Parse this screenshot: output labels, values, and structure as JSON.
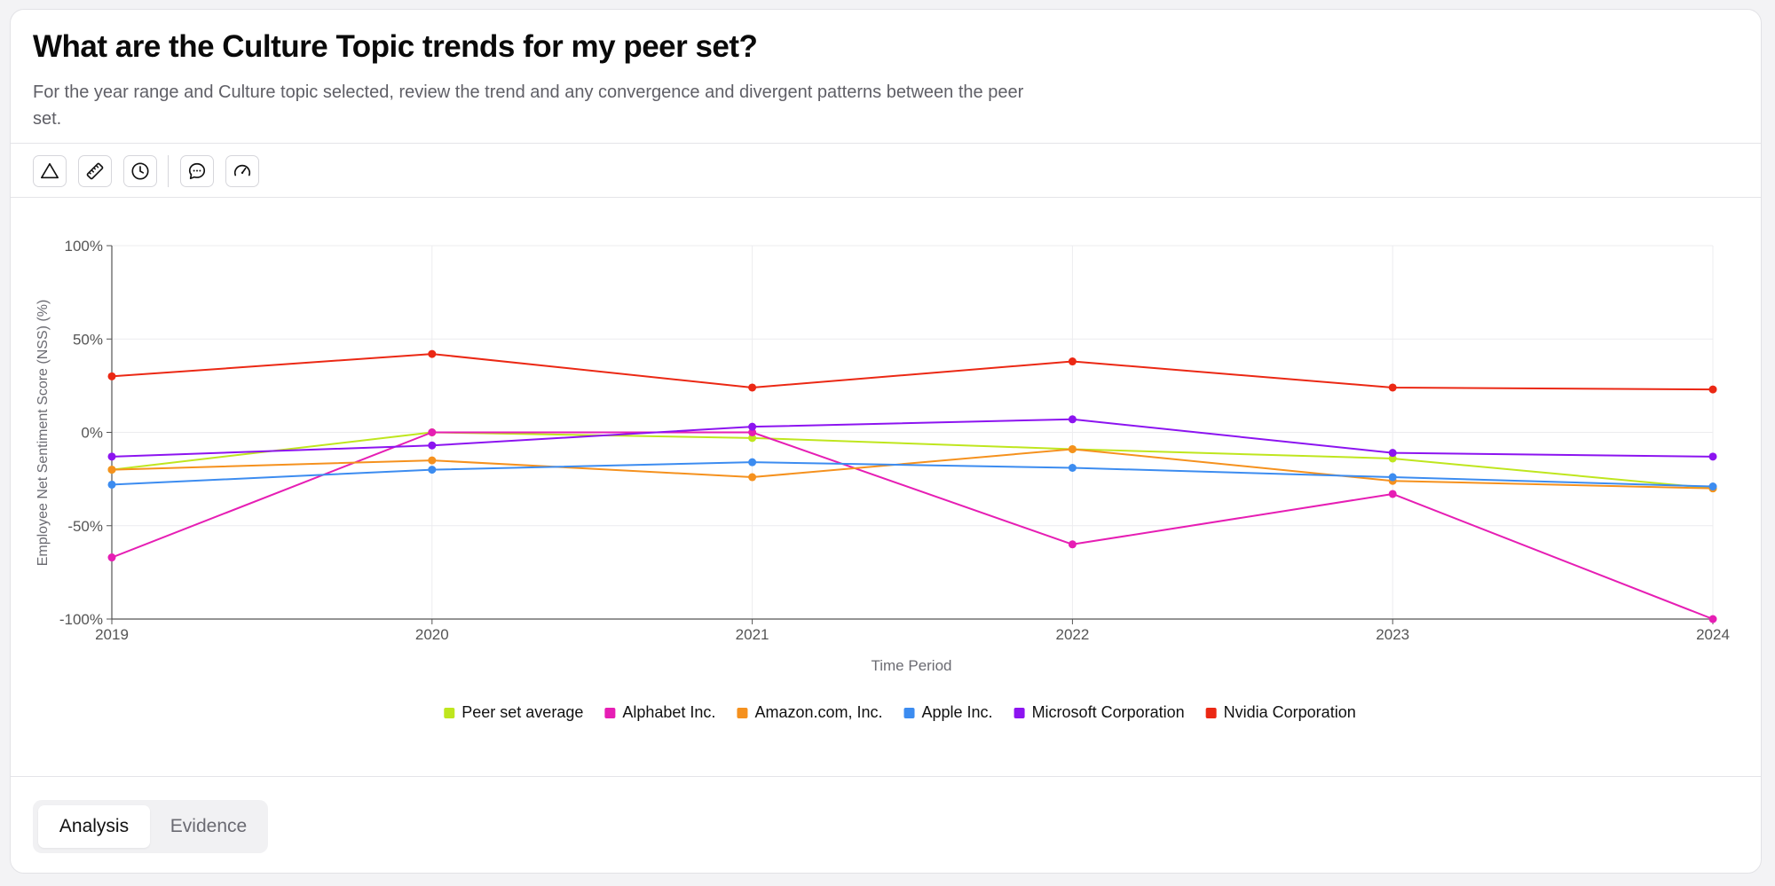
{
  "header": {
    "title": "What are the Culture Topic trends for my peer set?",
    "subtitle": "For the year range and Culture topic selected, review the trend and any convergence and divergent patterns between the peer set."
  },
  "toolbar": {
    "buttons": [
      {
        "name": "triangle-icon"
      },
      {
        "name": "ruler-icon"
      },
      {
        "name": "clock-icon"
      },
      {
        "name": "chat-icon"
      },
      {
        "name": "gauge-icon"
      }
    ]
  },
  "chart_data": {
    "type": "line",
    "title": "",
    "xlabel": "Time Period",
    "ylabel": "Employee Net Sentiment Score (NSS) (%)",
    "x": [
      "2019",
      "2020",
      "2021",
      "2022",
      "2023",
      "2024"
    ],
    "ylim": [
      -100,
      100
    ],
    "yticks": [
      {
        "value": 100,
        "label": "100%"
      },
      {
        "value": 50,
        "label": "50%"
      },
      {
        "value": 0,
        "label": "0%"
      },
      {
        "value": -50,
        "label": "-50%"
      },
      {
        "value": -100,
        "label": "-100%"
      }
    ],
    "grid": true,
    "legend_position": "bottom-center",
    "series": [
      {
        "name": "Peer set average",
        "color": "#bfe61e",
        "values": [
          -20,
          0,
          -3,
          -9,
          -14,
          -30
        ]
      },
      {
        "name": "Alphabet Inc.",
        "color": "#e61eb4",
        "values": [
          -67,
          0,
          0,
          -60,
          -33,
          -100
        ]
      },
      {
        "name": "Amazon.com, Inc.",
        "color": "#f5911e",
        "values": [
          -20,
          -15,
          -24,
          -9,
          -26,
          -30
        ]
      },
      {
        "name": "Apple Inc.",
        "color": "#3c8cf0",
        "values": [
          -28,
          -20,
          -16,
          -19,
          -24,
          -29
        ]
      },
      {
        "name": "Microsoft Corporation",
        "color": "#8c14f0",
        "values": [
          -13,
          -7,
          3,
          7,
          -11,
          -13
        ]
      },
      {
        "name": "Nvidia Corporation",
        "color": "#eb2814",
        "values": [
          30,
          42,
          24,
          38,
          24,
          23
        ]
      }
    ]
  },
  "tabs": [
    {
      "label": "Analysis",
      "active": true
    },
    {
      "label": "Evidence",
      "active": false
    }
  ]
}
